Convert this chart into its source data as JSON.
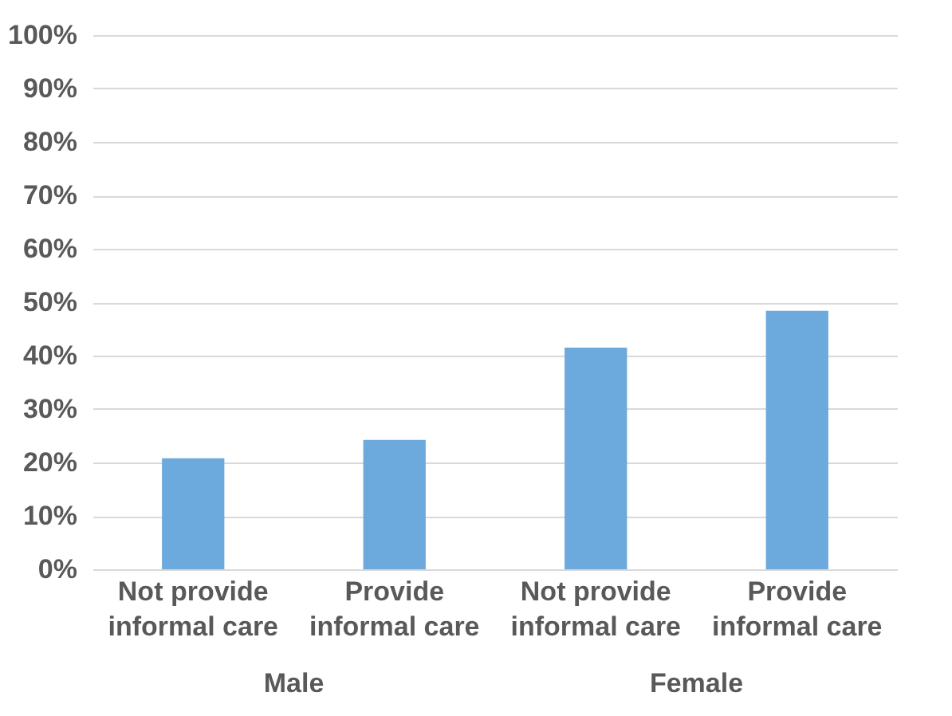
{
  "chart_data": {
    "type": "bar",
    "categories": [
      "Not provide informal care",
      "Provide informal care",
      "Not provide informal care ",
      "Provide informal care "
    ],
    "values": [
      20.8,
      24.2,
      41.5,
      48.4
    ],
    "color": "#6ca9dc",
    "ylim": [
      0,
      100
    ],
    "yticks": [
      {
        "value": 0,
        "label": "0%"
      },
      {
        "value": 10,
        "label": "10%"
      },
      {
        "value": 20,
        "label": "20%"
      },
      {
        "value": 30,
        "label": "30%"
      },
      {
        "value": 40,
        "label": "40%"
      },
      {
        "value": 50,
        "label": "50%"
      },
      {
        "value": 60,
        "label": "60%"
      },
      {
        "value": 70,
        "label": "70%"
      },
      {
        "value": 80,
        "label": "80%"
      },
      {
        "value": 90,
        "label": "90%"
      },
      {
        "value": 100,
        "label": "100%"
      }
    ],
    "grid": "y",
    "annotations": [
      "Male",
      "Female"
    ]
  }
}
